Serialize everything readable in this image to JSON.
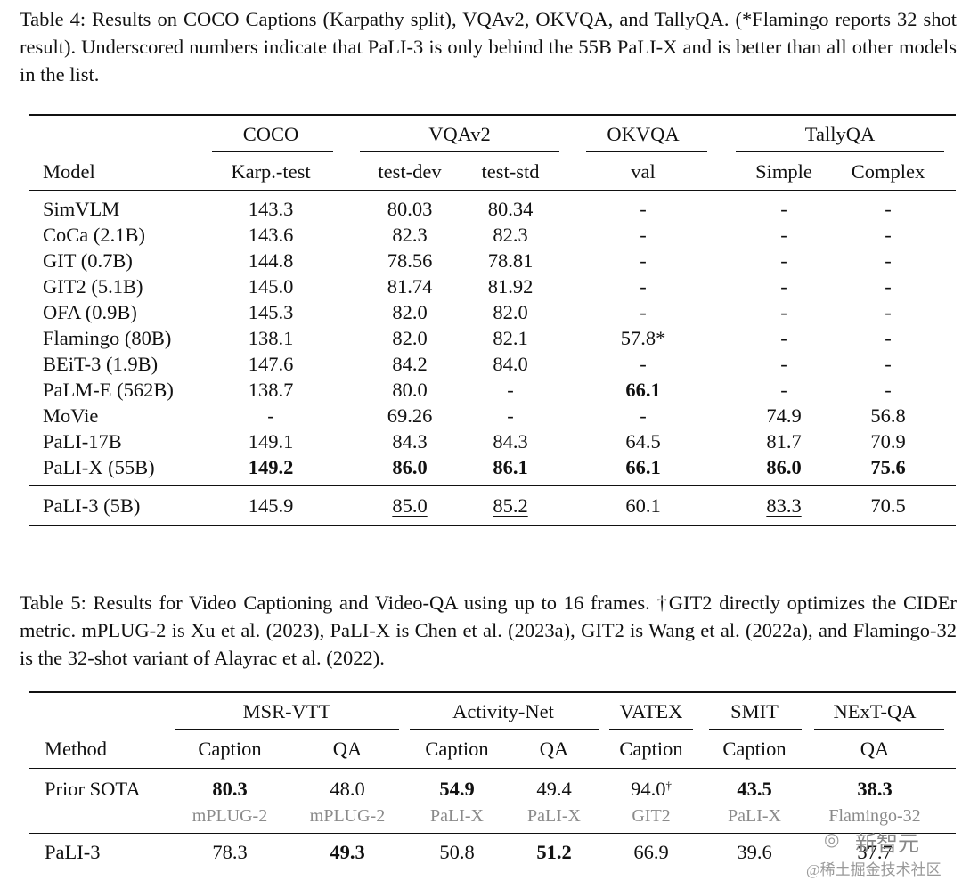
{
  "table4": {
    "caption": "Table 4: Results on COCO Captions (Karpathy split), VQAv2, OKVQA, and TallyQA. (*Flamingo reports 32 shot result). Underscored numbers indicate that PaLI-3 is only behind the 55B PaLI-X and is better than all other models in the list.",
    "groups": [
      "COCO",
      "VQAv2",
      "OKVQA",
      "TallyQA"
    ],
    "headers": [
      "Model",
      "Karp.-test",
      "test-dev",
      "test-std",
      "val",
      "Simple",
      "Complex"
    ],
    "rows": [
      [
        "SimVLM",
        "143.3",
        "80.03",
        "80.34",
        "-",
        "-",
        "-"
      ],
      [
        "CoCa (2.1B)",
        "143.6",
        "82.3",
        "82.3",
        "-",
        "-",
        "-"
      ],
      [
        "GIT (0.7B)",
        "144.8",
        "78.56",
        "78.81",
        "-",
        "-",
        "-"
      ],
      [
        "GIT2 (5.1B)",
        "145.0",
        "81.74",
        "81.92",
        "-",
        "-",
        "-"
      ],
      [
        "OFA (0.9B)",
        "145.3",
        "82.0",
        "82.0",
        "-",
        "-",
        "-"
      ],
      [
        "Flamingo (80B)",
        "138.1",
        "82.0",
        "82.1",
        "57.8*",
        "-",
        "-"
      ],
      [
        "BEiT-3 (1.9B)",
        "147.6",
        "84.2",
        "84.0",
        "-",
        "-",
        "-"
      ],
      [
        "PaLM-E (562B)",
        "138.7",
        "80.0",
        "-",
        "66.1",
        "-",
        "-"
      ],
      [
        "MoVie",
        "-",
        "69.26",
        "-",
        "-",
        "74.9",
        "56.8"
      ],
      [
        "PaLI-17B",
        "149.1",
        "84.3",
        "84.3",
        "64.5",
        "81.7",
        "70.9"
      ],
      [
        "PaLI-X (55B)",
        "149.2",
        "86.0",
        "86.1",
        "66.1",
        "86.0",
        "75.6"
      ]
    ],
    "final_row": [
      "PaLI-3 (5B)",
      "145.9",
      "85.0",
      "85.2",
      "60.1",
      "83.3",
      "70.5"
    ]
  },
  "table5": {
    "caption": "Table 5: Results for Video Captioning and Video-QA using up to 16 frames. †GIT2 directly optimizes the CIDEr metric. mPLUG-2 is Xu et al. (2023), PaLI-X is Chen et al. (2023a), GIT2 is Wang et al. (2022a), and Flamingo-32 is the 32-shot variant of Alayrac et al. (2022).",
    "groups": [
      "MSR-VTT",
      "Activity-Net",
      "VATEX",
      "SMIT",
      "NExT-QA"
    ],
    "headers": [
      "Method",
      "Caption",
      "QA",
      "Caption",
      "QA",
      "Caption",
      "Caption",
      "QA"
    ],
    "prior_label": "Prior SOTA",
    "prior_values": [
      "80.3",
      "48.0",
      "54.9",
      "49.4",
      "94.0",
      "43.5",
      "38.3"
    ],
    "dagger": "†",
    "prior_sources": [
      "mPLUG-2",
      "mPLUG-2",
      "PaLI-X",
      "PaLI-X",
      "GIT2",
      "PaLI-X",
      "Flamingo-32"
    ],
    "pali3_label": "PaLI-3",
    "pali3_values": [
      "78.3",
      "49.3",
      "50.8",
      "51.2",
      "66.9",
      "39.6",
      "37.7"
    ]
  },
  "watermark": {
    "brand": "新智元",
    "community": "@稀土掘金技术社区"
  }
}
